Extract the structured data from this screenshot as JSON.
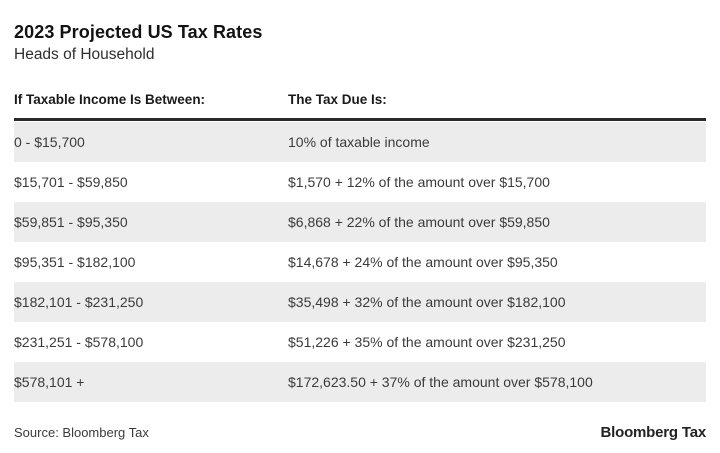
{
  "chart_data": {
    "type": "table",
    "title": "2023 Projected US Tax Rates",
    "subtitle": "Heads of Household",
    "columns": [
      "If Taxable Income Is Between:",
      "The Tax Due Is:"
    ],
    "rows": [
      [
        "0 - $15,700",
        "10% of taxable income"
      ],
      [
        "$15,701 - $59,850",
        "$1,570 + 12% of the amount over $15,700"
      ],
      [
        "$59,851 - $95,350",
        "$6,868 + 22% of the amount over $59,850"
      ],
      [
        "$95,351 - $182,100",
        "$14,678 + 24% of the amount over $95,350"
      ],
      [
        "$182,101 - $231,250",
        "$35,498 + 32% of the amount over $182,100"
      ],
      [
        "$231,251 - $578,100",
        "$51,226 + 35% of the amount over $231,250"
      ],
      [
        "$578,101 +",
        "$172,623.50 + 37% of the amount over $578,100"
      ]
    ],
    "source": "Source: Bloomberg Tax",
    "brand": "Bloomberg Tax",
    "layout": {
      "zebra_color": "#ececec",
      "rule_color": "#2a2a2a",
      "zebra_pattern": "odd-rows-shaded",
      "grid": "none",
      "legend": "none"
    }
  }
}
